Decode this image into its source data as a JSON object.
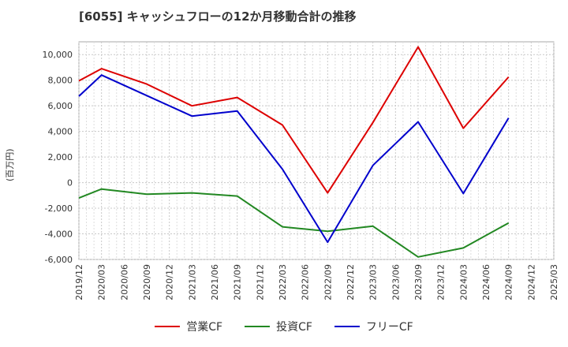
{
  "chart_data": {
    "type": "line",
    "title": "[6055]  キャッシュフローの12か月移動合計の推移",
    "ylabel": "(百万円)",
    "xlabel": "",
    "ylim": [
      -6000,
      11000
    ],
    "yticks": [
      -6000,
      -4000,
      -2000,
      0,
      2000,
      4000,
      6000,
      8000,
      10000
    ],
    "ytick_labels": [
      "-6,000",
      "-4,000",
      "-2,000",
      "0",
      "2,000",
      "4,000",
      "6,000",
      "8,000",
      "10,000"
    ],
    "categories": [
      "2019/12",
      "2020/03",
      "2020/06",
      "2020/09",
      "2020/12",
      "2021/03",
      "2021/06",
      "2021/09",
      "2021/12",
      "2022/03",
      "2022/06",
      "2022/09",
      "2022/12",
      "2023/03",
      "2023/06",
      "2023/09",
      "2023/12",
      "2024/03",
      "2024/06",
      "2024/09",
      "2024/12",
      "2025/03"
    ],
    "grid": true,
    "legend_position": "bottom",
    "series": [
      {
        "name": "営業CF",
        "color": "#dd0000",
        "values": [
          7950,
          8900,
          null,
          7700,
          null,
          6000,
          null,
          6650,
          null,
          4500,
          null,
          -800,
          null,
          4700,
          null,
          10600,
          null,
          4250,
          null,
          8250,
          null,
          null
        ]
      },
      {
        "name": "投資CF",
        "color": "#228822",
        "values": [
          -1200,
          -500,
          null,
          -900,
          null,
          -800,
          null,
          -1050,
          null,
          -3450,
          null,
          -3800,
          null,
          -3400,
          null,
          -5800,
          null,
          -5100,
          null,
          -3150,
          null,
          null
        ]
      },
      {
        "name": "フリーCF",
        "color": "#0000cc",
        "values": [
          6750,
          8400,
          null,
          6800,
          null,
          5200,
          null,
          5600,
          null,
          1050,
          null,
          -4650,
          null,
          1350,
          null,
          4750,
          null,
          -850,
          null,
          5050,
          null,
          null
        ]
      }
    ]
  }
}
